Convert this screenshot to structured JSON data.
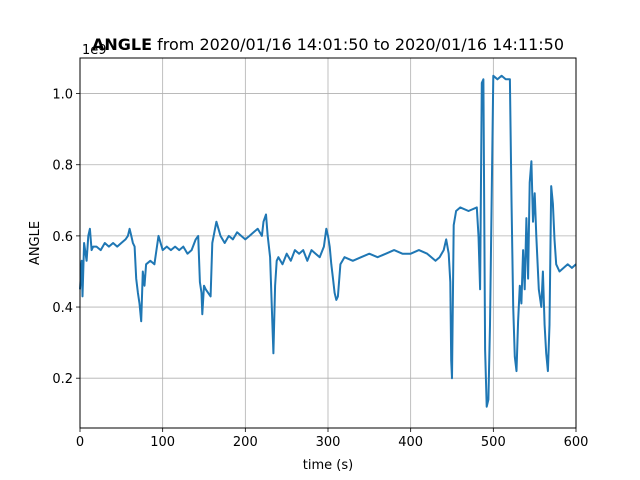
{
  "chart_data": {
    "type": "line",
    "title_bold": "ANGLE",
    "title_rest": " from 2020/01/16 14:01:50 to 2020/01/16 14:11:50",
    "xlabel": "time (s)",
    "ylabel": "ANGLE",
    "offset_text": "1e9",
    "xlim": [
      0,
      600
    ],
    "ylim": [
      0.06,
      1.1
    ],
    "xticks": [
      0,
      100,
      200,
      300,
      400,
      500,
      600
    ],
    "yticks": [
      0.2,
      0.4,
      0.6,
      0.8,
      1.0
    ],
    "ytick_labels": [
      "0.2",
      "0.4",
      "0.6",
      "0.8",
      "1.0"
    ],
    "grid": true,
    "series": [
      {
        "color": "#1f77b4",
        "x": [
          0,
          2,
          3,
          5,
          8,
          10,
          12,
          14,
          16,
          20,
          25,
          30,
          35,
          40,
          45,
          50,
          55,
          58,
          60,
          62,
          64,
          66,
          68,
          70,
          72,
          74,
          76,
          78,
          80,
          85,
          90,
          95,
          100,
          105,
          110,
          115,
          120,
          125,
          130,
          135,
          140,
          143,
          145,
          147,
          148,
          150,
          152,
          155,
          158,
          160,
          165,
          170,
          175,
          180,
          185,
          190,
          195,
          200,
          205,
          210,
          215,
          220,
          222,
          225,
          227,
          230,
          232,
          234,
          236,
          238,
          240,
          245,
          250,
          255,
          260,
          265,
          270,
          275,
          280,
          285,
          290,
          295,
          298,
          300,
          302,
          304,
          306,
          308,
          310,
          312,
          315,
          320,
          330,
          340,
          350,
          360,
          370,
          380,
          390,
          400,
          410,
          420,
          430,
          435,
          440,
          443,
          446,
          448,
          449,
          450,
          452,
          455,
          460,
          470,
          480,
          482,
          484,
          486,
          488,
          490,
          492,
          494,
          496,
          500,
          505,
          510,
          515,
          520,
          522,
          524,
          526,
          528,
          530,
          532,
          534,
          536,
          538,
          540,
          542,
          544,
          546,
          548,
          550,
          552,
          555,
          558,
          560,
          562,
          564,
          566,
          568,
          570,
          572,
          574,
          576,
          580,
          585,
          590,
          595,
          600
        ],
        "y": [
          0.45,
          0.53,
          0.43,
          0.58,
          0.53,
          0.6,
          0.62,
          0.56,
          0.57,
          0.57,
          0.56,
          0.58,
          0.57,
          0.58,
          0.57,
          0.58,
          0.59,
          0.6,
          0.62,
          0.6,
          0.58,
          0.57,
          0.48,
          0.44,
          0.41,
          0.36,
          0.5,
          0.46,
          0.52,
          0.53,
          0.52,
          0.6,
          0.56,
          0.57,
          0.56,
          0.57,
          0.56,
          0.57,
          0.55,
          0.56,
          0.59,
          0.6,
          0.47,
          0.44,
          0.38,
          0.46,
          0.45,
          0.44,
          0.43,
          0.58,
          0.64,
          0.6,
          0.58,
          0.6,
          0.59,
          0.61,
          0.6,
          0.59,
          0.6,
          0.61,
          0.62,
          0.6,
          0.64,
          0.66,
          0.6,
          0.54,
          0.4,
          0.27,
          0.46,
          0.53,
          0.54,
          0.52,
          0.55,
          0.53,
          0.56,
          0.55,
          0.56,
          0.53,
          0.56,
          0.55,
          0.54,
          0.57,
          0.62,
          0.6,
          0.57,
          0.52,
          0.48,
          0.44,
          0.42,
          0.43,
          0.52,
          0.54,
          0.53,
          0.54,
          0.55,
          0.54,
          0.55,
          0.56,
          0.55,
          0.55,
          0.56,
          0.55,
          0.53,
          0.54,
          0.56,
          0.59,
          0.55,
          0.47,
          0.25,
          0.2,
          0.63,
          0.67,
          0.68,
          0.67,
          0.68,
          0.6,
          0.45,
          1.03,
          1.04,
          0.28,
          0.12,
          0.14,
          0.35,
          1.05,
          1.04,
          1.05,
          1.04,
          1.04,
          0.7,
          0.4,
          0.26,
          0.22,
          0.36,
          0.46,
          0.41,
          0.56,
          0.45,
          0.65,
          0.48,
          0.75,
          0.81,
          0.64,
          0.72,
          0.6,
          0.45,
          0.4,
          0.5,
          0.35,
          0.27,
          0.22,
          0.35,
          0.74,
          0.69,
          0.59,
          0.52,
          0.5,
          0.51,
          0.52,
          0.51,
          0.52
        ]
      }
    ]
  }
}
